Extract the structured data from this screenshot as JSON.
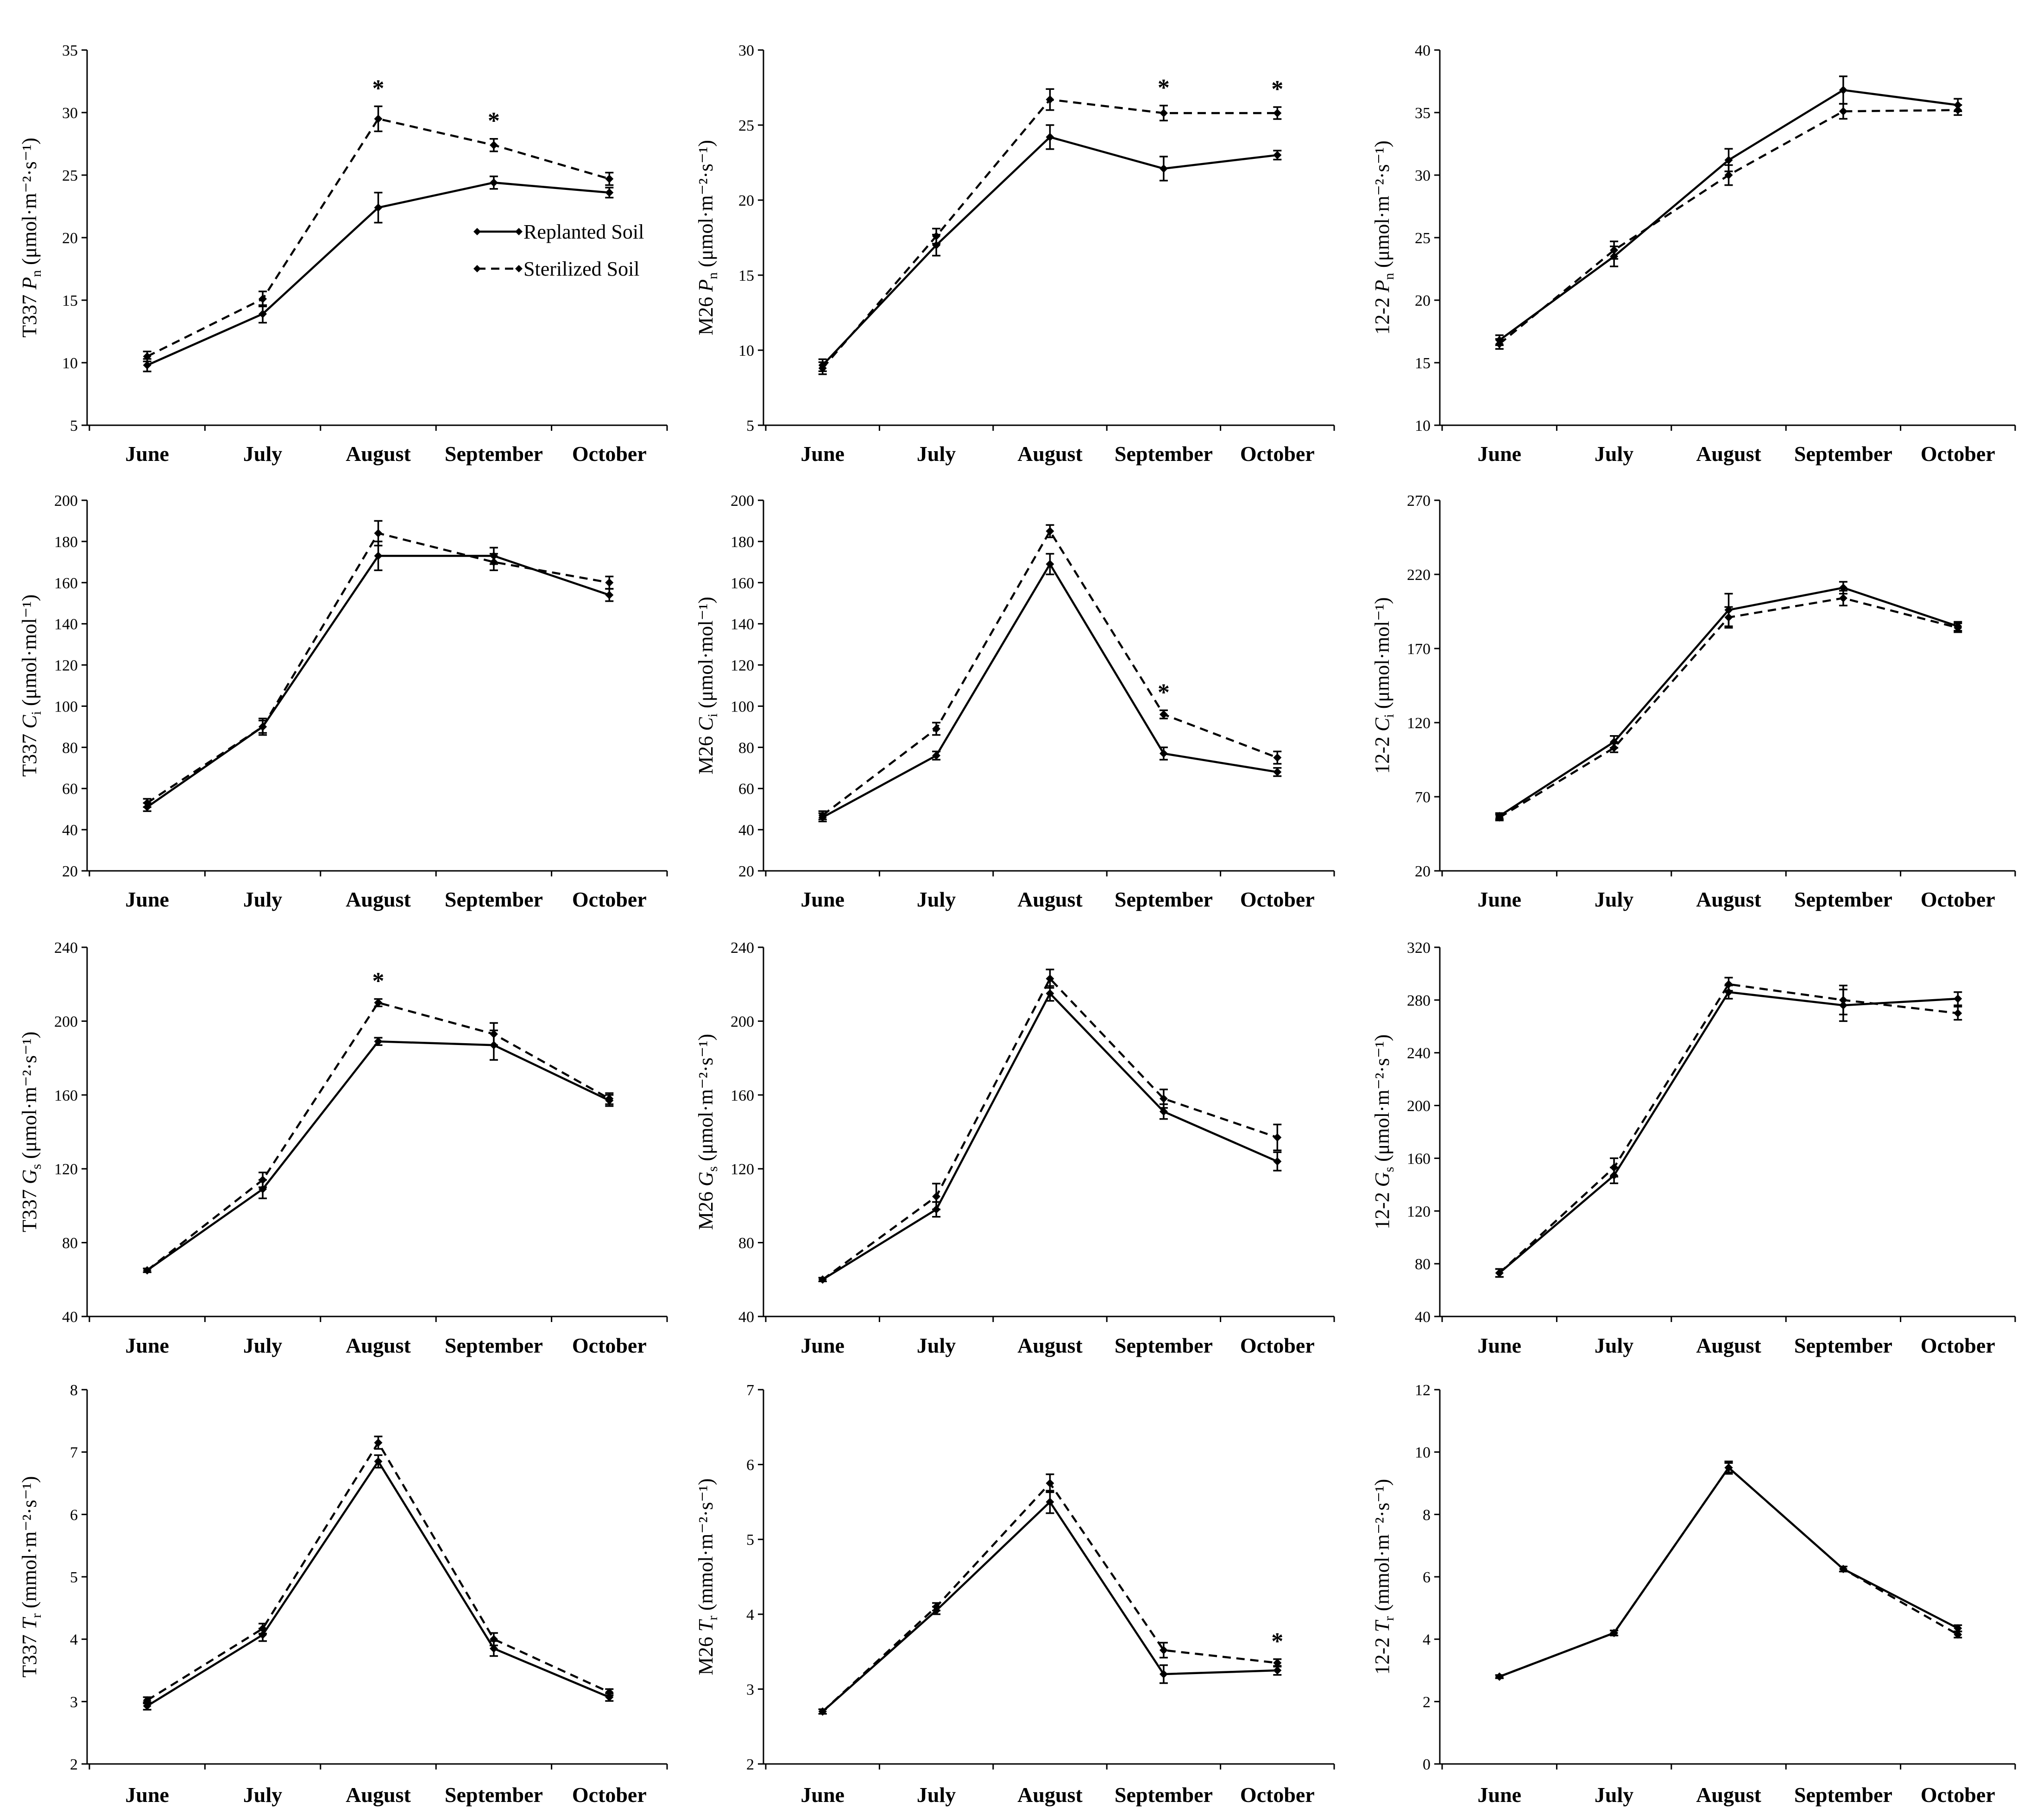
{
  "legend": {
    "replanted": "Replanted Soil",
    "sterilized": "Sterilized Soil"
  },
  "chart_data": [
    {
      "type": "line",
      "panel": "T337 Pn",
      "ylabel_prefix": "T337 ",
      "ylabel_symbol": "P",
      "ylabel_sub": "n",
      "ylabel_unit": " (μmol·m⁻²·s⁻¹)",
      "categories": [
        "June",
        "July",
        "August",
        "September",
        "October"
      ],
      "ylim": [
        5,
        35
      ],
      "yticks": [
        5,
        10,
        15,
        20,
        25,
        30,
        35
      ],
      "series": [
        {
          "name": "Replanted Soil",
          "values": [
            9.8,
            13.9,
            22.4,
            24.4,
            23.6
          ],
          "errors": [
            0.5,
            0.7,
            1.2,
            0.5,
            0.4
          ]
        },
        {
          "name": "Sterilized Soil",
          "values": [
            10.5,
            15.1,
            29.5,
            27.4,
            24.7
          ],
          "errors": [
            0.4,
            0.6,
            1.0,
            0.5,
            0.5
          ]
        }
      ],
      "significance": [
        {
          "category": "August",
          "label": "*"
        },
        {
          "category": "September",
          "label": "*"
        }
      ],
      "legend": "top-right"
    },
    {
      "type": "line",
      "panel": "M26 Pn",
      "ylabel_prefix": "M26 ",
      "ylabel_symbol": "P",
      "ylabel_sub": "n",
      "ylabel_unit": " (μmol·m⁻²·s⁻¹)",
      "categories": [
        "June",
        "July",
        "August",
        "September",
        "October"
      ],
      "ylim": [
        5,
        30
      ],
      "yticks": [
        5,
        10,
        15,
        20,
        25,
        30
      ],
      "series": [
        {
          "name": "Replanted Soil",
          "values": [
            9.0,
            17.0,
            24.2,
            22.1,
            23.0
          ],
          "errors": [
            0.4,
            0.7,
            0.8,
            0.8,
            0.3
          ]
        },
        {
          "name": "Sterilized Soil",
          "values": [
            8.8,
            17.6,
            26.7,
            25.8,
            25.8
          ],
          "errors": [
            0.4,
            0.5,
            0.7,
            0.5,
            0.4
          ]
        }
      ],
      "significance": [
        {
          "category": "September",
          "label": "*"
        },
        {
          "category": "October",
          "label": "*"
        }
      ]
    },
    {
      "type": "line",
      "panel": "12-2 Pn",
      "ylabel_prefix": "12-2 ",
      "ylabel_symbol": "P",
      "ylabel_sub": "n",
      "ylabel_unit": " (μmol·m⁻²·s⁻¹)",
      "categories": [
        "June",
        "July",
        "August",
        "September",
        "October"
      ],
      "ylim": [
        10,
        40
      ],
      "yticks": [
        10,
        15,
        20,
        25,
        30,
        35,
        40
      ],
      "series": [
        {
          "name": "Replanted Soil",
          "values": [
            16.8,
            23.5,
            31.2,
            36.8,
            35.6
          ],
          "errors": [
            0.4,
            0.8,
            0.9,
            1.1,
            0.5
          ]
        },
        {
          "name": "Sterilized Soil",
          "values": [
            16.5,
            24.0,
            30.0,
            35.1,
            35.2
          ],
          "errors": [
            0.4,
            0.7,
            0.8,
            0.6,
            0.4
          ]
        }
      ],
      "significance": []
    },
    {
      "type": "line",
      "panel": "T337 Ci",
      "ylabel_prefix": "T337 ",
      "ylabel_symbol": "C",
      "ylabel_sub": "i",
      "ylabel_unit": " (μmol·mol⁻¹)",
      "categories": [
        "June",
        "July",
        "August",
        "September",
        "October"
      ],
      "ylim": [
        20,
        200
      ],
      "yticks": [
        20,
        40,
        60,
        80,
        100,
        120,
        140,
        160,
        180,
        200
      ],
      "series": [
        {
          "name": "Replanted Soil",
          "values": [
            51,
            90,
            173,
            173,
            154
          ],
          "errors": [
            2,
            3,
            7,
            4,
            3
          ]
        },
        {
          "name": "Sterilized Soil",
          "values": [
            53,
            90,
            184,
            170,
            160
          ],
          "errors": [
            2,
            4,
            6,
            4,
            3
          ]
        }
      ],
      "significance": []
    },
    {
      "type": "line",
      "panel": "M26 Ci",
      "ylabel_prefix": "M26 ",
      "ylabel_symbol": "C",
      "ylabel_sub": "i",
      "ylabel_unit": " (μmol·mol⁻¹)",
      "categories": [
        "June",
        "July",
        "August",
        "September",
        "October"
      ],
      "ylim": [
        20,
        200
      ],
      "yticks": [
        20,
        40,
        60,
        80,
        100,
        120,
        140,
        160,
        180,
        200
      ],
      "series": [
        {
          "name": "Replanted Soil",
          "values": [
            46,
            76,
            169,
            77,
            68
          ],
          "errors": [
            2,
            2,
            5,
            3,
            2
          ]
        },
        {
          "name": "Sterilized Soil",
          "values": [
            47,
            89,
            185,
            96,
            75
          ],
          "errors": [
            2,
            3,
            3,
            2,
            3
          ]
        }
      ],
      "significance": [
        {
          "category": "September",
          "label": "*"
        }
      ]
    },
    {
      "type": "line",
      "panel": "12-2 Ci",
      "ylabel_prefix": "12-2 ",
      "ylabel_symbol": "C",
      "ylabel_sub": "i",
      "ylabel_unit": " (μmol·mol⁻¹)",
      "categories": [
        "June",
        "July",
        "August",
        "September",
        "October"
      ],
      "ylim": [
        20,
        270
      ],
      "yticks": [
        20,
        70,
        120,
        170,
        220,
        270
      ],
      "series": [
        {
          "name": "Replanted Soil",
          "values": [
            57,
            107,
            196,
            211,
            185
          ],
          "errors": [
            2,
            4,
            11,
            4,
            3
          ]
        },
        {
          "name": "Sterilized Soil",
          "values": [
            56,
            103,
            191,
            204,
            184
          ],
          "errors": [
            2,
            3,
            7,
            5,
            3
          ]
        }
      ],
      "significance": []
    },
    {
      "type": "line",
      "panel": "T337 Gs",
      "ylabel_prefix": "T337 ",
      "ylabel_symbol": "G",
      "ylabel_sub": "s",
      "ylabel_unit": " (μmol·m⁻²·s⁻¹)",
      "categories": [
        "June",
        "July",
        "August",
        "September",
        "October"
      ],
      "ylim": [
        40,
        240
      ],
      "yticks": [
        40,
        80,
        120,
        160,
        200,
        240
      ],
      "series": [
        {
          "name": "Replanted Soil",
          "values": [
            65,
            109,
            189,
            187,
            157
          ],
          "errors": [
            1,
            5,
            2,
            8,
            3
          ]
        },
        {
          "name": "Sterilized Soil",
          "values": [
            65,
            114,
            210,
            193,
            158
          ],
          "errors": [
            1,
            4,
            2,
            6,
            3
          ]
        }
      ],
      "significance": [
        {
          "category": "August",
          "label": "*"
        }
      ]
    },
    {
      "type": "line",
      "panel": "M26 Gs",
      "ylabel_prefix": "M26 ",
      "ylabel_symbol": "G",
      "ylabel_sub": "s",
      "ylabel_unit": " (μmol·m⁻²·s⁻¹)",
      "categories": [
        "June",
        "July",
        "August",
        "September",
        "October"
      ],
      "ylim": [
        40,
        240
      ],
      "yticks": [
        40,
        80,
        120,
        160,
        200,
        240
      ],
      "series": [
        {
          "name": "Replanted Soil",
          "values": [
            60,
            98,
            215,
            151,
            124
          ],
          "errors": [
            1,
            4,
            4,
            4,
            5
          ]
        },
        {
          "name": "Sterilized Soil",
          "values": [
            60,
            105,
            223,
            158,
            137
          ],
          "errors": [
            1,
            7,
            5,
            5,
            7
          ]
        }
      ],
      "significance": []
    },
    {
      "type": "line",
      "panel": "12-2 Gs",
      "ylabel_prefix": "12-2 ",
      "ylabel_symbol": "G",
      "ylabel_sub": "s",
      "ylabel_unit": " (μmol·m⁻²·s⁻¹)",
      "categories": [
        "June",
        "July",
        "August",
        "September",
        "October"
      ],
      "ylim": [
        40,
        320
      ],
      "yticks": [
        40,
        80,
        120,
        160,
        200,
        240,
        280,
        320
      ],
      "series": [
        {
          "name": "Replanted Soil",
          "values": [
            73,
            147,
            286,
            276,
            281
          ],
          "errors": [
            3,
            6,
            5,
            12,
            5
          ]
        },
        {
          "name": "Sterilized Soil",
          "values": [
            73,
            153,
            292,
            280,
            270
          ],
          "errors": [
            3,
            7,
            5,
            11,
            5
          ]
        }
      ],
      "significance": []
    },
    {
      "type": "line",
      "panel": "T337 Tr",
      "ylabel_prefix": "T337 ",
      "ylabel_symbol": "T",
      "ylabel_sub": "r",
      "ylabel_unit": " (mmol·m⁻²·s⁻¹)",
      "categories": [
        "June",
        "July",
        "August",
        "September",
        "October"
      ],
      "ylim": [
        2,
        8
      ],
      "yticks": [
        2,
        3,
        4,
        5,
        6,
        7,
        8
      ],
      "series": [
        {
          "name": "Replanted Soil",
          "values": [
            2.93,
            4.07,
            6.85,
            3.85,
            3.07
          ],
          "errors": [
            0.06,
            0.1,
            0.1,
            0.12,
            0.06
          ]
        },
        {
          "name": "Sterilized Soil",
          "values": [
            3.02,
            4.17,
            7.15,
            4.0,
            3.15
          ],
          "errors": [
            0.05,
            0.08,
            0.1,
            0.1,
            0.05
          ]
        }
      ],
      "significance": []
    },
    {
      "type": "line",
      "panel": "M26 Tr",
      "ylabel_prefix": "M26 ",
      "ylabel_symbol": "T",
      "ylabel_sub": "r",
      "ylabel_unit": " (mmol·m⁻²·s⁻¹)",
      "categories": [
        "June",
        "July",
        "August",
        "September",
        "October"
      ],
      "ylim": [
        2,
        7
      ],
      "yticks": [
        2,
        3,
        4,
        5,
        6,
        7
      ],
      "series": [
        {
          "name": "Replanted Soil",
          "values": [
            2.7,
            4.05,
            5.5,
            3.2,
            3.25
          ],
          "errors": [
            0.03,
            0.05,
            0.15,
            0.12,
            0.06
          ]
        },
        {
          "name": "Sterilized Soil",
          "values": [
            2.7,
            4.1,
            5.75,
            3.52,
            3.35
          ],
          "errors": [
            0.03,
            0.05,
            0.12,
            0.1,
            0.05
          ]
        }
      ],
      "significance": [
        {
          "category": "October",
          "label": "*"
        }
      ]
    },
    {
      "type": "line",
      "panel": "12-2 Tr",
      "ylabel_prefix": "12-2 ",
      "ylabel_symbol": "T",
      "ylabel_sub": "r",
      "ylabel_unit": " (mmol·m⁻²·s⁻¹)",
      "categories": [
        "June",
        "July",
        "August",
        "September",
        "October"
      ],
      "ylim": [
        0,
        12
      ],
      "yticks": [
        0,
        2,
        4,
        6,
        8,
        10,
        12
      ],
      "series": [
        {
          "name": "Replanted Soil",
          "values": [
            2.8,
            4.2,
            9.5,
            6.25,
            4.35
          ],
          "errors": [
            0.05,
            0.08,
            0.2,
            0.08,
            0.1
          ]
        },
        {
          "name": "Sterilized Soil",
          "values": [
            2.8,
            4.2,
            9.5,
            6.25,
            4.15
          ],
          "errors": [
            0.05,
            0.08,
            0.15,
            0.08,
            0.1
          ]
        }
      ],
      "significance": []
    }
  ]
}
